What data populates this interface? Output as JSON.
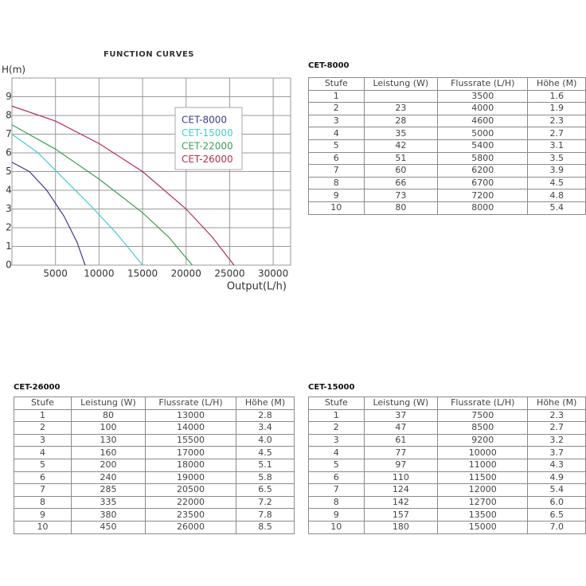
{
  "chart_data": {
    "type": "line",
    "title": "FUNCTION CURVES",
    "ylabel": "H(m)",
    "xlabel": "Output(L/h)",
    "xlim": [
      0,
      32000
    ],
    "ylim": [
      0,
      10
    ],
    "xticks": [
      5000,
      10000,
      15000,
      20000,
      25000,
      30000
    ],
    "yticks": [
      0,
      1,
      2,
      3,
      4,
      5,
      6,
      7,
      8,
      9
    ],
    "grid": true,
    "series": [
      {
        "name": "CET-8000",
        "color": "#3b3b8c",
        "x": [
          0,
          2000,
          4000,
          6000,
          7500,
          8400
        ],
        "values": [
          5.5,
          5.0,
          4.0,
          2.6,
          1.2,
          0
        ]
      },
      {
        "name": "CET-15000",
        "color": "#45cfd0",
        "x": [
          0,
          3000,
          6000,
          9000,
          12000,
          15000
        ],
        "values": [
          7.0,
          6.0,
          4.6,
          3.2,
          1.7,
          0
        ]
      },
      {
        "name": "CET-22000",
        "color": "#3a9f55",
        "x": [
          0,
          5000,
          10000,
          15000,
          18000,
          20700
        ],
        "values": [
          7.5,
          6.2,
          4.6,
          2.8,
          1.5,
          0
        ]
      },
      {
        "name": "CET-26000",
        "color": "#b0304f",
        "x": [
          0,
          5000,
          10000,
          15000,
          20000,
          23000,
          25500
        ],
        "values": [
          8.5,
          7.7,
          6.5,
          5.0,
          3.0,
          1.5,
          0
        ]
      }
    ]
  },
  "tables": [
    {
      "title": "CET-8000",
      "header": [
        "Stufe",
        "Leistung (W)",
        "Flussrate (L/H)",
        "Höhe (M)"
      ],
      "rows": [
        [
          "1",
          null,
          "3500",
          "1.6"
        ],
        [
          "2",
          "23",
          "4000",
          "1.9"
        ],
        [
          "3",
          "28",
          "4600",
          "2.3"
        ],
        [
          "4",
          "35",
          "5000",
          "2.7"
        ],
        [
          "5",
          "42",
          "5400",
          "3.1"
        ],
        [
          "6",
          "51",
          "5800",
          "3.5"
        ],
        [
          "7",
          "60",
          "6200",
          "3.9"
        ],
        [
          "8",
          "66",
          "6700",
          "4.5"
        ],
        [
          "9",
          "73",
          "7200",
          "4.8"
        ],
        [
          "10",
          "80",
          "8000",
          "5.4"
        ]
      ]
    },
    {
      "title": "CET-26000",
      "header": [
        "Stufe",
        "Leistung (W)",
        "Flussrate (L/H)",
        "Höhe (M)"
      ],
      "rows": [
        [
          "1",
          "80",
          "13000",
          "2.8"
        ],
        [
          "2",
          "100",
          "14000",
          "3.4"
        ],
        [
          "3",
          "130",
          "15500",
          "4.0"
        ],
        [
          "4",
          "160",
          "17000",
          "4.5"
        ],
        [
          "5",
          "200",
          "18000",
          "5.1"
        ],
        [
          "6",
          "240",
          "19000",
          "5.8"
        ],
        [
          "7",
          "285",
          "20500",
          "6.5"
        ],
        [
          "8",
          "335",
          "22000",
          "7.2"
        ],
        [
          "9",
          "380",
          "23500",
          "7.8"
        ],
        [
          "10",
          "450",
          "26000",
          "8.5"
        ]
      ]
    },
    {
      "title": "CET-15000",
      "header": [
        "Stufe",
        "Leistung (W)",
        "Flussrate (L/H)",
        "Höhe (M)"
      ],
      "rows": [
        [
          "1",
          "37",
          "7500",
          "2.3"
        ],
        [
          "2",
          "47",
          "8500",
          "2.7"
        ],
        [
          "3",
          "61",
          "9200",
          "3.2"
        ],
        [
          "4",
          "77",
          "10000",
          "3.7"
        ],
        [
          "5",
          "97",
          "11000",
          "4.3"
        ],
        [
          "6",
          "110",
          "11500",
          "4.9"
        ],
        [
          "7",
          "124",
          "12000",
          "5.4"
        ],
        [
          "8",
          "142",
          "12700",
          "6.0"
        ],
        [
          "9",
          "157",
          "13500",
          "6.5"
        ],
        [
          "10",
          "180",
          "15000",
          "7.0"
        ]
      ]
    }
  ]
}
